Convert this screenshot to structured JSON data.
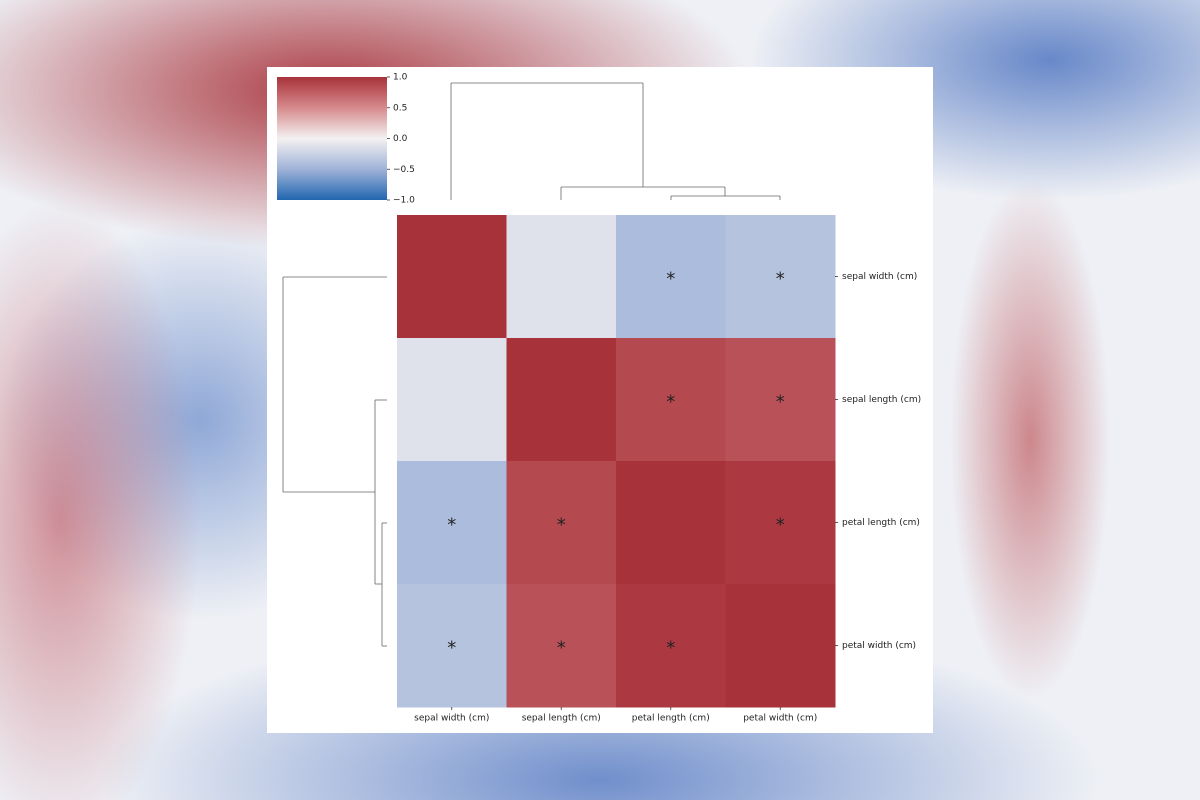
{
  "chart_data": {
    "type": "heatmap",
    "x_categories": [
      "sepal width (cm)",
      "sepal length (cm)",
      "petal length (cm)",
      "petal width (cm)"
    ],
    "y_categories": [
      "sepal width (cm)",
      "sepal length (cm)",
      "petal length (cm)",
      "petal width (cm)"
    ],
    "values": [
      [
        1,
        -0.12,
        -0.43,
        -0.37
      ],
      [
        -0.12,
        1,
        0.87,
        0.82
      ],
      [
        -0.43,
        0.87,
        1,
        0.96
      ],
      [
        -0.37,
        0.82,
        0.96,
        1
      ]
    ],
    "cell_labels": [
      [
        null,
        null,
        "*",
        "*"
      ],
      [
        null,
        null,
        "*",
        "*"
      ],
      [
        "*",
        "*",
        null,
        "*"
      ],
      [
        "*",
        "*",
        "*",
        null
      ]
    ],
    "colormap": [
      "#2166b0",
      "#9fb3d8",
      "#f4f1f1",
      "#d68a8d",
      "#a8323a"
    ],
    "colorbar": {
      "lim": [
        -1,
        1
      ],
      "ticks": [
        {
          "value": -1,
          "label": "−1.0"
        },
        {
          "value": -0.5,
          "label": "−0.5"
        },
        {
          "value": 0,
          "label": "0.0"
        },
        {
          "value": 0.5,
          "label": "0.5"
        },
        {
          "value": 1,
          "label": "1.0"
        }
      ]
    }
  }
}
